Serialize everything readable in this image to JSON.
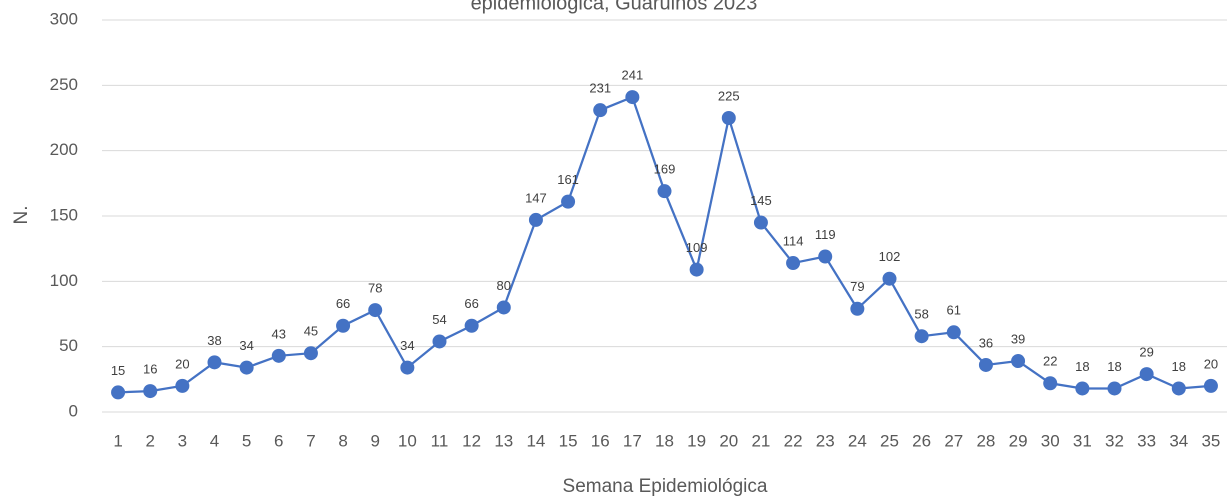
{
  "chart_data": {
    "type": "line",
    "title": "epidemiológica, Guarulhos 2023",
    "x_label": "Semana Epidemiológica",
    "y_label": "N.",
    "categories": [
      "1",
      "2",
      "3",
      "4",
      "5",
      "6",
      "7",
      "8",
      "9",
      "10",
      "11",
      "12",
      "13",
      "14",
      "15",
      "16",
      "17",
      "18",
      "19",
      "20",
      "21",
      "22",
      "23",
      "24",
      "25",
      "26",
      "27",
      "28",
      "29",
      "30",
      "31",
      "32",
      "33",
      "34",
      "35"
    ],
    "values": [
      15,
      16,
      20,
      38,
      34,
      43,
      45,
      66,
      78,
      34,
      54,
      66,
      80,
      147,
      161,
      231,
      241,
      169,
      109,
      225,
      145,
      114,
      119,
      79,
      102,
      58,
      61,
      36,
      39,
      22,
      18,
      18,
      29,
      18,
      20
    ],
    "color": "#4472c4",
    "ylim": [
      0,
      300
    ],
    "yticks": [
      0,
      50,
      100,
      150,
      200,
      250,
      300
    ],
    "grid": true
  }
}
